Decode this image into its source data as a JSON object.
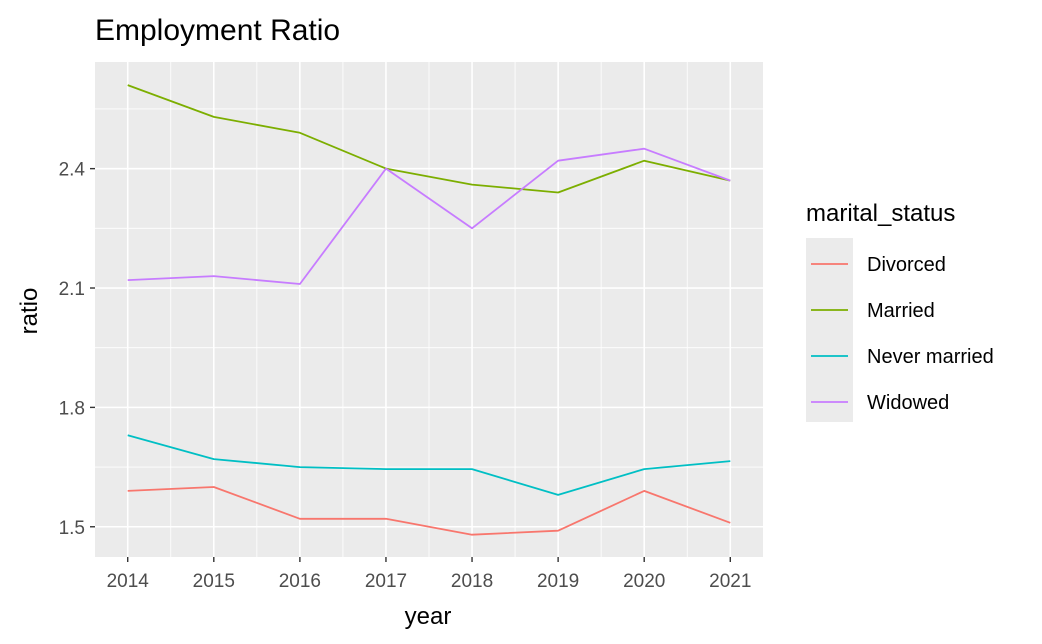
{
  "chart_data": {
    "type": "line",
    "title": "Employment Ratio",
    "xlabel": "year",
    "ylabel": "ratio",
    "x": [
      2014,
      2015,
      2016,
      2017,
      2018,
      2019,
      2020,
      2021
    ],
    "x_ticks": [
      "2014",
      "2015",
      "2016",
      "2017",
      "2018",
      "2019",
      "2020",
      "2021"
    ],
    "y_ticks": [
      "1.5",
      "1.8",
      "2.1",
      "2.4"
    ],
    "y_tick_values": [
      1.5,
      1.8,
      2.1,
      2.4
    ],
    "xlim": [
      2013.62,
      2021.38
    ],
    "ylim": [
      1.424,
      2.668
    ],
    "grid": true,
    "legend": {
      "title": "marital_status",
      "position": "right"
    },
    "series": [
      {
        "name": "Divorced",
        "color": "#F8766D",
        "values": [
          1.59,
          1.6,
          1.52,
          1.52,
          1.48,
          1.49,
          1.59,
          1.51
        ]
      },
      {
        "name": "Married",
        "color": "#7CAE00",
        "values": [
          2.61,
          2.53,
          2.49,
          2.4,
          2.36,
          2.34,
          2.42,
          2.37
        ]
      },
      {
        "name": "Never married",
        "color": "#00BFC4",
        "values": [
          1.73,
          1.67,
          1.65,
          1.645,
          1.645,
          1.58,
          1.645,
          1.665
        ]
      },
      {
        "name": "Widowed",
        "color": "#C77CFF",
        "values": [
          2.12,
          2.13,
          2.11,
          2.4,
          2.25,
          2.42,
          2.45,
          2.37
        ]
      }
    ]
  }
}
